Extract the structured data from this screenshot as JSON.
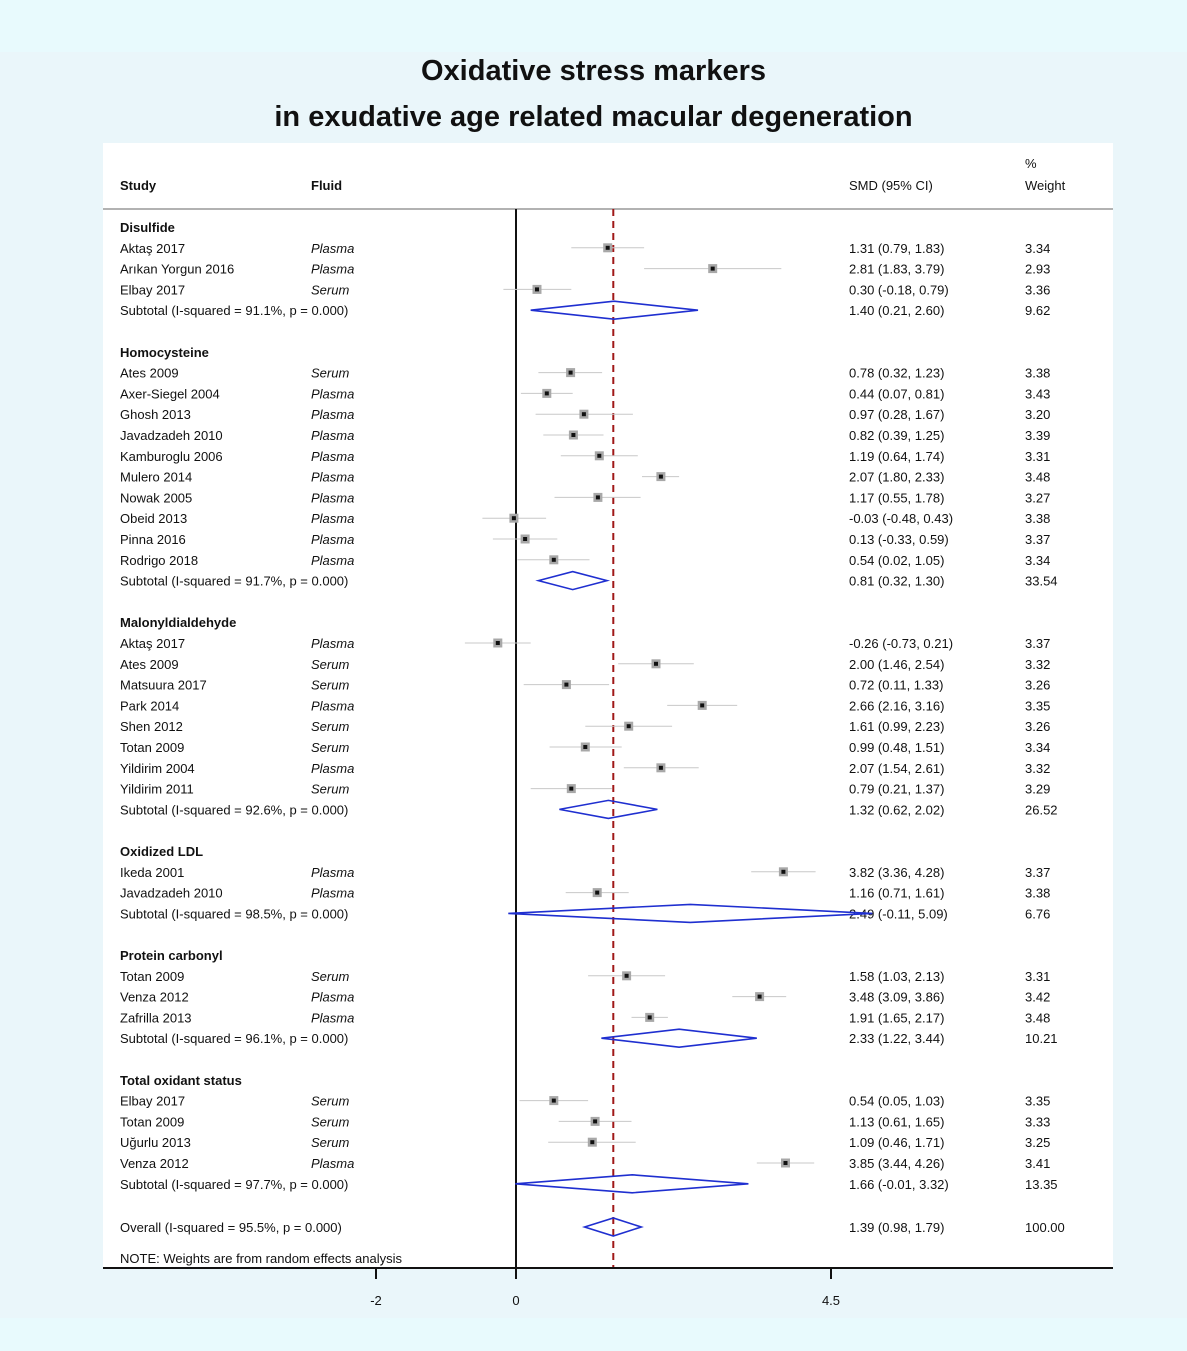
{
  "chart_data": {
    "type": "forest",
    "title_line1": "Oxidative stress markers",
    "title_line2": "in exudative age related macular degeneration",
    "columns": {
      "study": "Study",
      "fluid": "Fluid",
      "smd": "SMD (95% CI)",
      "weight_line1": "%",
      "weight_line2": "Weight"
    },
    "xaxis": {
      "ticks": [
        -2,
        0,
        4.5
      ],
      "tick_labels": [
        "-2",
        "0",
        "4.5"
      ],
      "range": [
        -2,
        4.5
      ],
      "null_line": 0
    },
    "overall_effect_line": 1.39,
    "note": "NOTE: Weights are from random effects analysis",
    "groups": [
      {
        "name": "Disulfide",
        "studies": [
          {
            "study": "Aktaş 2017",
            "fluid": "Plasma",
            "smd": 1.31,
            "lo": 0.79,
            "hi": 1.83,
            "ci": "1.31 (0.79, 1.83)",
            "weight": "3.34"
          },
          {
            "study": "Arıkan Yorgun 2016",
            "fluid": "Plasma",
            "smd": 2.81,
            "lo": 1.83,
            "hi": 3.79,
            "ci": "2.81 (1.83, 3.79)",
            "weight": "2.93"
          },
          {
            "study": "Elbay 2017",
            "fluid": "Serum",
            "smd": 0.3,
            "lo": -0.18,
            "hi": 0.79,
            "ci": "0.30 (-0.18, 0.79)",
            "weight": "3.36"
          }
        ],
        "subtotal": {
          "label": "Subtotal  (I-squared = 91.1%, p = 0.000)",
          "smd": 1.4,
          "lo": 0.21,
          "hi": 2.6,
          "ci": "1.40 (0.21, 2.60)",
          "weight": "9.62"
        }
      },
      {
        "name": "Homocysteine",
        "studies": [
          {
            "study": "Ates 2009",
            "fluid": "Serum",
            "smd": 0.78,
            "lo": 0.32,
            "hi": 1.23,
            "ci": "0.78 (0.32, 1.23)",
            "weight": "3.38"
          },
          {
            "study": "Axer-Siegel 2004",
            "fluid": "Plasma",
            "smd": 0.44,
            "lo": 0.07,
            "hi": 0.81,
            "ci": "0.44 (0.07, 0.81)",
            "weight": "3.43"
          },
          {
            "study": "Ghosh 2013",
            "fluid": "Plasma",
            "smd": 0.97,
            "lo": 0.28,
            "hi": 1.67,
            "ci": "0.97 (0.28, 1.67)",
            "weight": "3.20"
          },
          {
            "study": "Javadzadeh 2010",
            "fluid": "Plasma",
            "smd": 0.82,
            "lo": 0.39,
            "hi": 1.25,
            "ci": "0.82 (0.39, 1.25)",
            "weight": "3.39"
          },
          {
            "study": "Kamburoglu 2006",
            "fluid": "Plasma",
            "smd": 1.19,
            "lo": 0.64,
            "hi": 1.74,
            "ci": "1.19 (0.64, 1.74)",
            "weight": "3.31"
          },
          {
            "study": "Mulero 2014",
            "fluid": "Plasma",
            "smd": 2.07,
            "lo": 1.8,
            "hi": 2.33,
            "ci": "2.07 (1.80, 2.33)",
            "weight": "3.48"
          },
          {
            "study": "Nowak 2005",
            "fluid": "Plasma",
            "smd": 1.17,
            "lo": 0.55,
            "hi": 1.78,
            "ci": "1.17 (0.55, 1.78)",
            "weight": "3.27"
          },
          {
            "study": "Obeid 2013",
            "fluid": "Plasma",
            "smd": -0.03,
            "lo": -0.48,
            "hi": 0.43,
            "ci": "-0.03 (-0.48, 0.43)",
            "weight": "3.38"
          },
          {
            "study": "Pinna 2016",
            "fluid": "Plasma",
            "smd": 0.13,
            "lo": -0.33,
            "hi": 0.59,
            "ci": "0.13 (-0.33, 0.59)",
            "weight": "3.37"
          },
          {
            "study": "Rodrigo 2018",
            "fluid": "Plasma",
            "smd": 0.54,
            "lo": 0.02,
            "hi": 1.05,
            "ci": "0.54 (0.02, 1.05)",
            "weight": "3.34"
          }
        ],
        "subtotal": {
          "label": "Subtotal  (I-squared = 91.7%, p = 0.000)",
          "smd": 0.81,
          "lo": 0.32,
          "hi": 1.3,
          "ci": "0.81 (0.32, 1.30)",
          "weight": "33.54"
        }
      },
      {
        "name": "Malonyldialdehyde",
        "studies": [
          {
            "study": "Aktaş 2017",
            "fluid": "Plasma",
            "smd": -0.26,
            "lo": -0.73,
            "hi": 0.21,
            "ci": "-0.26 (-0.73, 0.21)",
            "weight": "3.37"
          },
          {
            "study": "Ates 2009",
            "fluid": "Serum",
            "smd": 2.0,
            "lo": 1.46,
            "hi": 2.54,
            "ci": "2.00 (1.46, 2.54)",
            "weight": "3.32"
          },
          {
            "study": "Matsuura 2017",
            "fluid": "Serum",
            "smd": 0.72,
            "lo": 0.11,
            "hi": 1.33,
            "ci": "0.72 (0.11, 1.33)",
            "weight": "3.26"
          },
          {
            "study": "Park 2014",
            "fluid": "Plasma",
            "smd": 2.66,
            "lo": 2.16,
            "hi": 3.16,
            "ci": "2.66 (2.16, 3.16)",
            "weight": "3.35"
          },
          {
            "study": "Shen 2012",
            "fluid": "Serum",
            "smd": 1.61,
            "lo": 0.99,
            "hi": 2.23,
            "ci": "1.61 (0.99, 2.23)",
            "weight": "3.26"
          },
          {
            "study": "Totan 2009",
            "fluid": "Serum",
            "smd": 0.99,
            "lo": 0.48,
            "hi": 1.51,
            "ci": "0.99 (0.48, 1.51)",
            "weight": "3.34"
          },
          {
            "study": "Yildirim 2004",
            "fluid": "Plasma",
            "smd": 2.07,
            "lo": 1.54,
            "hi": 2.61,
            "ci": "2.07 (1.54, 2.61)",
            "weight": "3.32"
          },
          {
            "study": "Yildirim 2011",
            "fluid": "Serum",
            "smd": 0.79,
            "lo": 0.21,
            "hi": 1.37,
            "ci": "0.79 (0.21, 1.37)",
            "weight": "3.29"
          }
        ],
        "subtotal": {
          "label": "Subtotal  (I-squared = 92.6%, p = 0.000)",
          "smd": 1.32,
          "lo": 0.62,
          "hi": 2.02,
          "ci": "1.32 (0.62, 2.02)",
          "weight": "26.52"
        }
      },
      {
        "name": "Oxidized LDL",
        "studies": [
          {
            "study": "Ikeda 2001",
            "fluid": "Plasma",
            "smd": 3.82,
            "lo": 3.36,
            "hi": 4.28,
            "ci": "3.82 (3.36, 4.28)",
            "weight": "3.37"
          },
          {
            "study": "Javadzadeh 2010",
            "fluid": "Plasma",
            "smd": 1.16,
            "lo": 0.71,
            "hi": 1.61,
            "ci": "1.16 (0.71, 1.61)",
            "weight": "3.38"
          }
        ],
        "subtotal": {
          "label": "Subtotal  (I-squared = 98.5%, p = 0.000)",
          "smd": 2.49,
          "lo": -0.11,
          "hi": 5.09,
          "ci": "2.49 (-0.11, 5.09)",
          "weight": "6.76"
        }
      },
      {
        "name": "Protein carbonyl",
        "studies": [
          {
            "study": "Totan 2009",
            "fluid": "Serum",
            "smd": 1.58,
            "lo": 1.03,
            "hi": 2.13,
            "ci": "1.58 (1.03, 2.13)",
            "weight": "3.31"
          },
          {
            "study": "Venza 2012",
            "fluid": "Plasma",
            "smd": 3.48,
            "lo": 3.09,
            "hi": 3.86,
            "ci": "3.48 (3.09, 3.86)",
            "weight": "3.42"
          },
          {
            "study": "Zafrilla 2013",
            "fluid": "Plasma",
            "smd": 1.91,
            "lo": 1.65,
            "hi": 2.17,
            "ci": "1.91 (1.65, 2.17)",
            "weight": "3.48"
          }
        ],
        "subtotal": {
          "label": "Subtotal  (I-squared = 96.1%, p = 0.000)",
          "smd": 2.33,
          "lo": 1.22,
          "hi": 3.44,
          "ci": "2.33 (1.22, 3.44)",
          "weight": "10.21"
        }
      },
      {
        "name": "Total oxidant status",
        "studies": [
          {
            "study": "Elbay 2017",
            "fluid": "Serum",
            "smd": 0.54,
            "lo": 0.05,
            "hi": 1.03,
            "ci": "0.54 (0.05, 1.03)",
            "weight": "3.35"
          },
          {
            "study": "Totan 2009",
            "fluid": "Serum",
            "smd": 1.13,
            "lo": 0.61,
            "hi": 1.65,
            "ci": "1.13 (0.61, 1.65)",
            "weight": "3.33"
          },
          {
            "study": "Uğurlu 2013",
            "fluid": "Serum",
            "smd": 1.09,
            "lo": 0.46,
            "hi": 1.71,
            "ci": "1.09 (0.46, 1.71)",
            "weight": "3.25"
          },
          {
            "study": "Venza 2012",
            "fluid": "Plasma",
            "smd": 3.85,
            "lo": 3.44,
            "hi": 4.26,
            "ci": "3.85 (3.44, 4.26)",
            "weight": "3.41"
          }
        ],
        "subtotal": {
          "label": "Subtotal  (I-squared = 97.7%, p = 0.000)",
          "smd": 1.66,
          "lo": -0.01,
          "hi": 3.32,
          "ci": "1.66 (-0.01, 3.32)",
          "weight": "13.35"
        }
      }
    ],
    "overall": {
      "label": "Overall  (I-squared = 95.5%, p = 0.000)",
      "smd": 1.39,
      "lo": 0.98,
      "hi": 1.79,
      "ci": "1.39 (0.98, 1.79)",
      "weight": "100.00"
    },
    "colors": {
      "diamond": "#1f2fd0",
      "effect_line": "#a01818",
      "ci_line": "#c8c8c8",
      "marker_box": "#a8a8a8",
      "marker_dot": "#111111",
      "axis": "#111111"
    }
  }
}
